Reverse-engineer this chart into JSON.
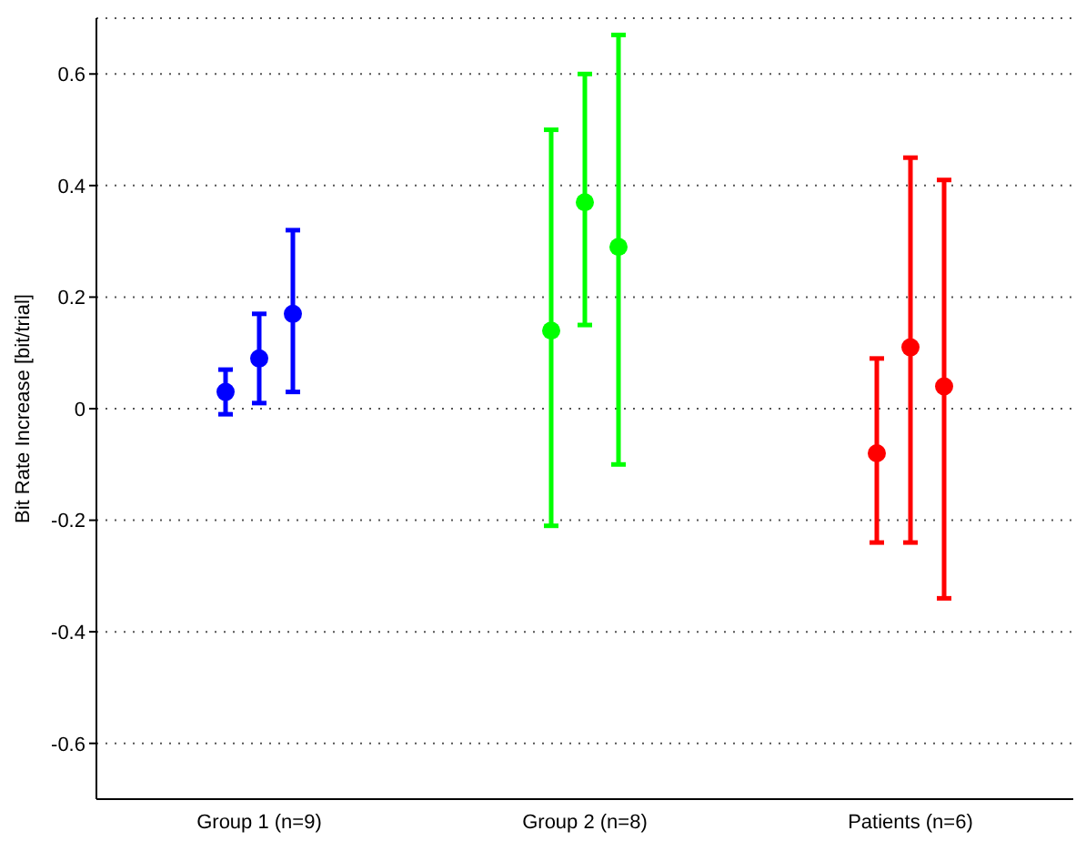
{
  "chart_data": {
    "type": "scatter",
    "ylabel": "Bit Rate Increase [bit/trial]",
    "categories": [
      "Group 1 (n=9)",
      "Group 2 (n=8)",
      "Patients (n=6)"
    ],
    "series": [
      {
        "colors": [
          "#0000ff",
          "#00ff00",
          "#ff0000"
        ],
        "values": [
          0.03,
          0.14,
          -0.08
        ],
        "errors": [
          [
            -0.01,
            0.07
          ],
          [
            -0.21,
            0.5
          ],
          [
            -0.24,
            0.09
          ]
        ]
      },
      {
        "colors": [
          "#0000ff",
          "#00ff00",
          "#ff0000"
        ],
        "values": [
          0.09,
          0.37,
          0.11
        ],
        "errors": [
          [
            0.01,
            0.17
          ],
          [
            0.15,
            0.6
          ],
          [
            -0.24,
            0.45
          ]
        ]
      },
      {
        "colors": [
          "#0000ff",
          "#00ff00",
          "#ff0000"
        ],
        "values": [
          0.17,
          0.29,
          0.04
        ],
        "errors": [
          [
            0.03,
            0.32
          ],
          [
            -0.1,
            0.67
          ],
          [
            -0.34,
            0.41
          ]
        ]
      }
    ],
    "ylim": [
      -0.7,
      0.7
    ],
    "yticks": [
      -0.6,
      -0.4,
      -0.2,
      0,
      0.2,
      0.4,
      0.6
    ],
    "grid": "y",
    "marker": "circle"
  }
}
